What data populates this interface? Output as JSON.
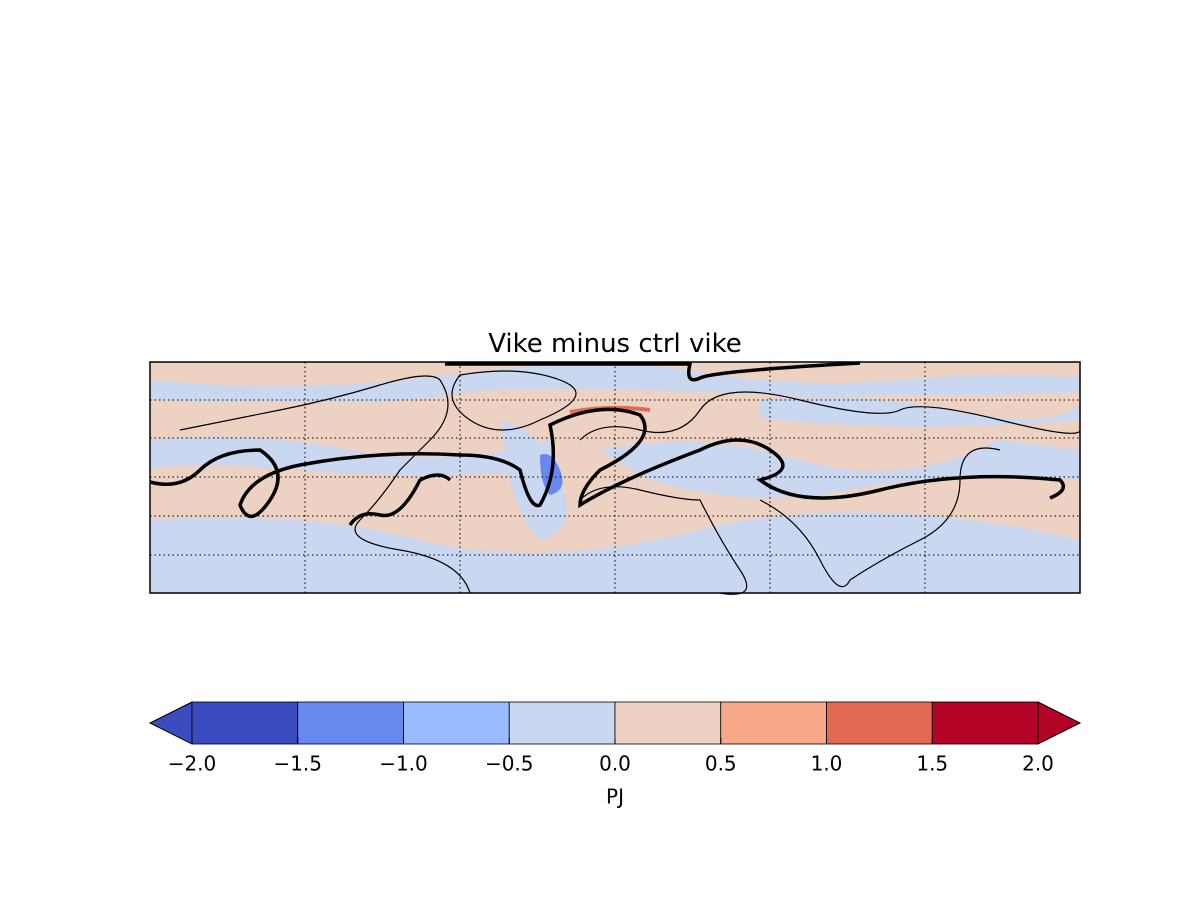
{
  "chart_data": {
    "type": "colorbar-map",
    "title": "Vike minus ctrl vike",
    "colorbar": {
      "label": "PJ",
      "xlim": [
        -2,
        2
      ],
      "ticks": [
        {
          "value": -2,
          "label": "−2.0"
        },
        {
          "value": -1.5,
          "label": "−1.5"
        },
        {
          "value": -1,
          "label": "−1.0"
        },
        {
          "value": -0.5,
          "label": "−0.5"
        },
        {
          "value": 0,
          "label": "0.0"
        },
        {
          "value": 0.5,
          "label": "0.5"
        },
        {
          "value": 1,
          "label": "1.0"
        },
        {
          "value": 1.5,
          "label": "1.5"
        },
        {
          "value": 2,
          "label": "2.0"
        }
      ],
      "colors": [
        "#3b4cc0",
        "#6788ee",
        "#9abbff",
        "#c9d7f0",
        "#edd1c2",
        "#f7a889",
        "#e26952",
        "#b40426"
      ],
      "under_color": "#3b4cc0",
      "over_color": "#b40426"
    }
  }
}
